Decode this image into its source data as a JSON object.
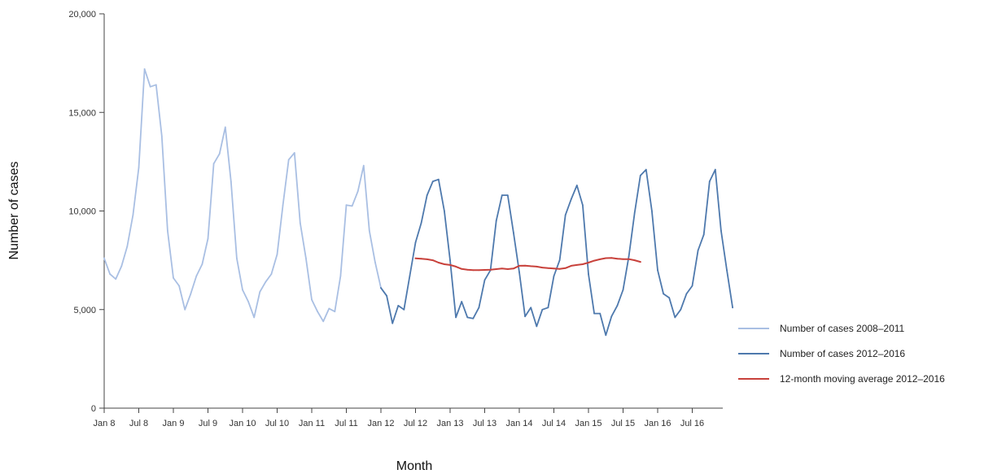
{
  "chart_data": {
    "type": "line",
    "title": "",
    "xlabel": "Month",
    "ylabel": "Number of cases",
    "ylim": [
      0,
      20000
    ],
    "yticks": [
      0,
      5000,
      10000,
      15000,
      20000
    ],
    "ytick_labels": [
      "0",
      "5,000",
      "10,000",
      "15,000",
      "20,000"
    ],
    "xtick_labels": [
      "Jan 8",
      "Jul 8",
      "Jan 9",
      "Jul 9",
      "Jan 10",
      "Jul 10",
      "Jan 11",
      "Jul 11",
      "Jan 12",
      "Jul 12",
      "Jan 13",
      "Jul 13",
      "Jan 14",
      "Jul 14",
      "Jan 15",
      "Jul 15",
      "Jan 16",
      "Jul 16"
    ],
    "grid": false,
    "legend_position": "right",
    "series": [
      {
        "name": "Number of cases 2008–2011",
        "color": "#a9bfe3",
        "start_month_index": 0,
        "values": [
          7600,
          6800,
          6550,
          7200,
          8200,
          9800,
          12200,
          17200,
          16300,
          16400,
          13800,
          9000,
          6600,
          6200,
          5000,
          5800,
          6700,
          7300,
          8600,
          12400,
          12900,
          14250,
          11500,
          7600,
          6000,
          5400,
          4600,
          5900,
          6400,
          6800,
          7800,
          10300,
          12600,
          12950,
          9400,
          7600,
          5500,
          4900,
          4400,
          5050,
          4900,
          6700,
          10300,
          10250,
          11000,
          12300,
          9000,
          7400,
          6100,
          5700
        ]
      },
      {
        "name": "Number of cases 2012–2016",
        "color": "#4e79ad",
        "start_month_index": 48,
        "values": [
          6100,
          5700,
          4300,
          5200,
          5000,
          6700,
          8400,
          9400,
          10800,
          11500,
          11600,
          10000,
          7500,
          4600,
          5400,
          4600,
          4550,
          5100,
          6500,
          7000,
          9500,
          10800,
          10800,
          8900,
          6900,
          4650,
          5100,
          4150,
          5000,
          5100,
          6700,
          7500,
          9800,
          10600,
          11300,
          10300,
          6800,
          4800,
          4800,
          3700,
          4650,
          5200,
          6000,
          7700,
          9900,
          11800,
          12100,
          10000,
          7000,
          5800,
          5600,
          4600,
          5000,
          5800,
          6200,
          8000,
          8800,
          11500,
          12100,
          9000,
          7000,
          5100
        ]
      },
      {
        "name": "12-month moving average 2012–2016",
        "color": "#c8413b",
        "start_month_index": 54,
        "values": [
          7600,
          7580,
          7550,
          7500,
          7380,
          7300,
          7260,
          7180,
          7060,
          7020,
          7000,
          7000,
          7010,
          7020,
          7050,
          7080,
          7050,
          7080,
          7220,
          7230,
          7200,
          7180,
          7130,
          7100,
          7080,
          7060,
          7100,
          7220,
          7260,
          7300,
          7380,
          7480,
          7550,
          7610,
          7620,
          7580,
          7560,
          7560,
          7500,
          7420
        ]
      }
    ]
  }
}
